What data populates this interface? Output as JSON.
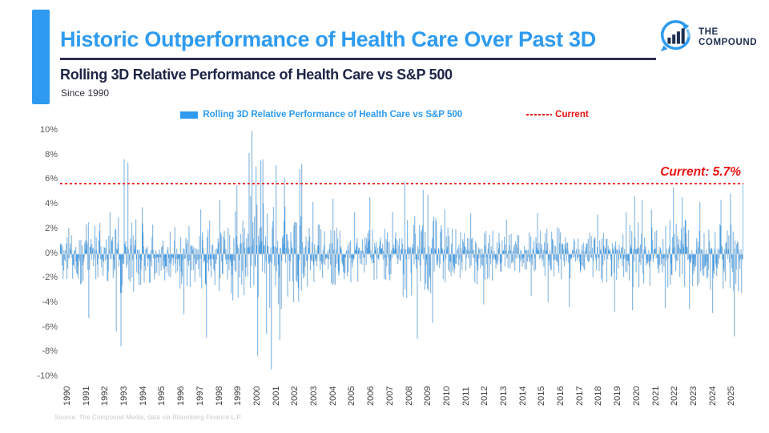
{
  "header": {
    "title": "Historic Outperformance of Health Care Over Past 3D",
    "subtitle": "Rolling 3D Relative Performance of Health Care vs S&P 500",
    "since": "Since 1990"
  },
  "logo": {
    "line1": "THE",
    "line2": "COMPOUND"
  },
  "legend": {
    "series_label": "Rolling 3D Relative Performance of Health Care vs S&P 500",
    "current_label": "Current"
  },
  "annotation": {
    "current_text": "Current: 5.7%"
  },
  "footer": {
    "source": "Source: The Compound Media, data via Bloomberg Finance L.P."
  },
  "colors": {
    "accent_blue": "#2e9bf0",
    "bar_blue": "#2e92e5",
    "navy": "#1d2447",
    "red": "#ed1111",
    "zero_line": "#c9c9c9",
    "axis_gray": "#595959",
    "source_gray": "#c9c9c9"
  },
  "chart_data": {
    "type": "bar",
    "title": "Rolling 3D Relative Performance of Health Care vs S&P 500",
    "subtitle": "Since 1990",
    "xlabel": "",
    "ylabel": "",
    "grid": false,
    "legend_position": "top-center",
    "ylim": [
      -10,
      10
    ],
    "ytick_values": [
      10,
      8,
      6,
      4,
      2,
      0,
      -2,
      -4,
      -6,
      -8,
      -10
    ],
    "ytick_labels": [
      "10%",
      "8%",
      "6%",
      "4%",
      "2%",
      "0%",
      "-2%",
      "-4%",
      "-6%",
      "-8%",
      "-10%"
    ],
    "years": [
      1990,
      1991,
      1992,
      1993,
      1994,
      1995,
      1996,
      1997,
      1998,
      1999,
      2000,
      2001,
      2002,
      2003,
      2004,
      2005,
      2006,
      2007,
      2008,
      2009,
      2010,
      2011,
      2012,
      2013,
      2014,
      2015,
      2016,
      2017,
      2018,
      2019,
      2020,
      2021,
      2022,
      2023,
      2024,
      2025
    ],
    "bars_per_year": 36,
    "current_value": 5.7,
    "envelope_up": [
      2.2,
      2.6,
      2.6,
      3.0,
      2.6,
      2.3,
      2.5,
      2.8,
      3.0,
      3.6,
      5.2,
      4.0,
      3.6,
      2.7,
      2.3,
      2.1,
      2.2,
      2.2,
      3.2,
      3.1,
      2.4,
      2.2,
      2.0,
      1.9,
      1.9,
      2.2,
      2.2,
      1.8,
      2.1,
      2.2,
      2.9,
      2.4,
      3.0,
      2.4,
      2.7,
      3.0
    ],
    "envelope_down": [
      2.8,
      2.8,
      3.2,
      3.6,
      2.8,
      2.3,
      3.0,
      3.2,
      3.4,
      3.8,
      5.0,
      4.8,
      4.0,
      3.0,
      2.6,
      2.4,
      2.5,
      2.6,
      3.6,
      3.4,
      2.6,
      2.5,
      2.4,
      2.1,
      2.2,
      2.6,
      2.6,
      2.0,
      2.4,
      2.6,
      3.0,
      2.6,
      3.0,
      2.8,
      3.0,
      3.2
    ],
    "spikes": [
      [
        1991.5,
        -5.2
      ],
      [
        1992.6,
        3.4
      ],
      [
        1992.95,
        -6.3
      ],
      [
        1993.2,
        -7.5
      ],
      [
        1993.35,
        7.7
      ],
      [
        1993.55,
        7.4
      ],
      [
        1994.3,
        3.8
      ],
      [
        1996.5,
        -4.9
      ],
      [
        1997.4,
        3.6
      ],
      [
        1997.7,
        -6.8
      ],
      [
        1998.4,
        4.4
      ],
      [
        1999.3,
        5.6
      ],
      [
        1999.95,
        8.2
      ],
      [
        2000.07,
        10.2
      ],
      [
        2000.3,
        7.1
      ],
      [
        2000.4,
        -8.3
      ],
      [
        2000.55,
        7.6
      ],
      [
        2000.68,
        7.7
      ],
      [
        2000.85,
        -6.5
      ],
      [
        2001.1,
        -9.4
      ],
      [
        2001.35,
        7.2
      ],
      [
        2001.55,
        -7.0
      ],
      [
        2001.8,
        6.2
      ],
      [
        2002.6,
        6.9
      ],
      [
        2002.72,
        7.3
      ],
      [
        2003.3,
        4.2
      ],
      [
        2004.35,
        4.5
      ],
      [
        2005.5,
        3.4
      ],
      [
        2006.3,
        4.6
      ],
      [
        2007.5,
        3.4
      ],
      [
        2008.15,
        5.9
      ],
      [
        2008.8,
        -6.9
      ],
      [
        2009.1,
        5.2
      ],
      [
        2009.35,
        4.8
      ],
      [
        2009.6,
        -5.6
      ],
      [
        2010.25,
        3.6
      ],
      [
        2011.6,
        3.3
      ],
      [
        2012.3,
        -4.1
      ],
      [
        2013.5,
        2.8
      ],
      [
        2014.8,
        -3.4
      ],
      [
        2015.15,
        3.3
      ],
      [
        2015.7,
        -3.9
      ],
      [
        2016.8,
        -4.3
      ],
      [
        2018.3,
        3.2
      ],
      [
        2019.2,
        -4.7
      ],
      [
        2019.8,
        3.4
      ],
      [
        2020.15,
        -4.6
      ],
      [
        2020.25,
        4.7
      ],
      [
        2020.65,
        4.4
      ],
      [
        2021.15,
        3.6
      ],
      [
        2021.85,
        -4.4
      ],
      [
        2022.3,
        5.4
      ],
      [
        2022.75,
        4.6
      ],
      [
        2023.15,
        -4.5
      ],
      [
        2023.7,
        4.2
      ],
      [
        2024.35,
        -4.8
      ],
      [
        2024.8,
        4.4
      ],
      [
        2025.3,
        4.9
      ],
      [
        2025.5,
        -6.7
      ],
      [
        2025.97,
        5.7
      ]
    ]
  }
}
